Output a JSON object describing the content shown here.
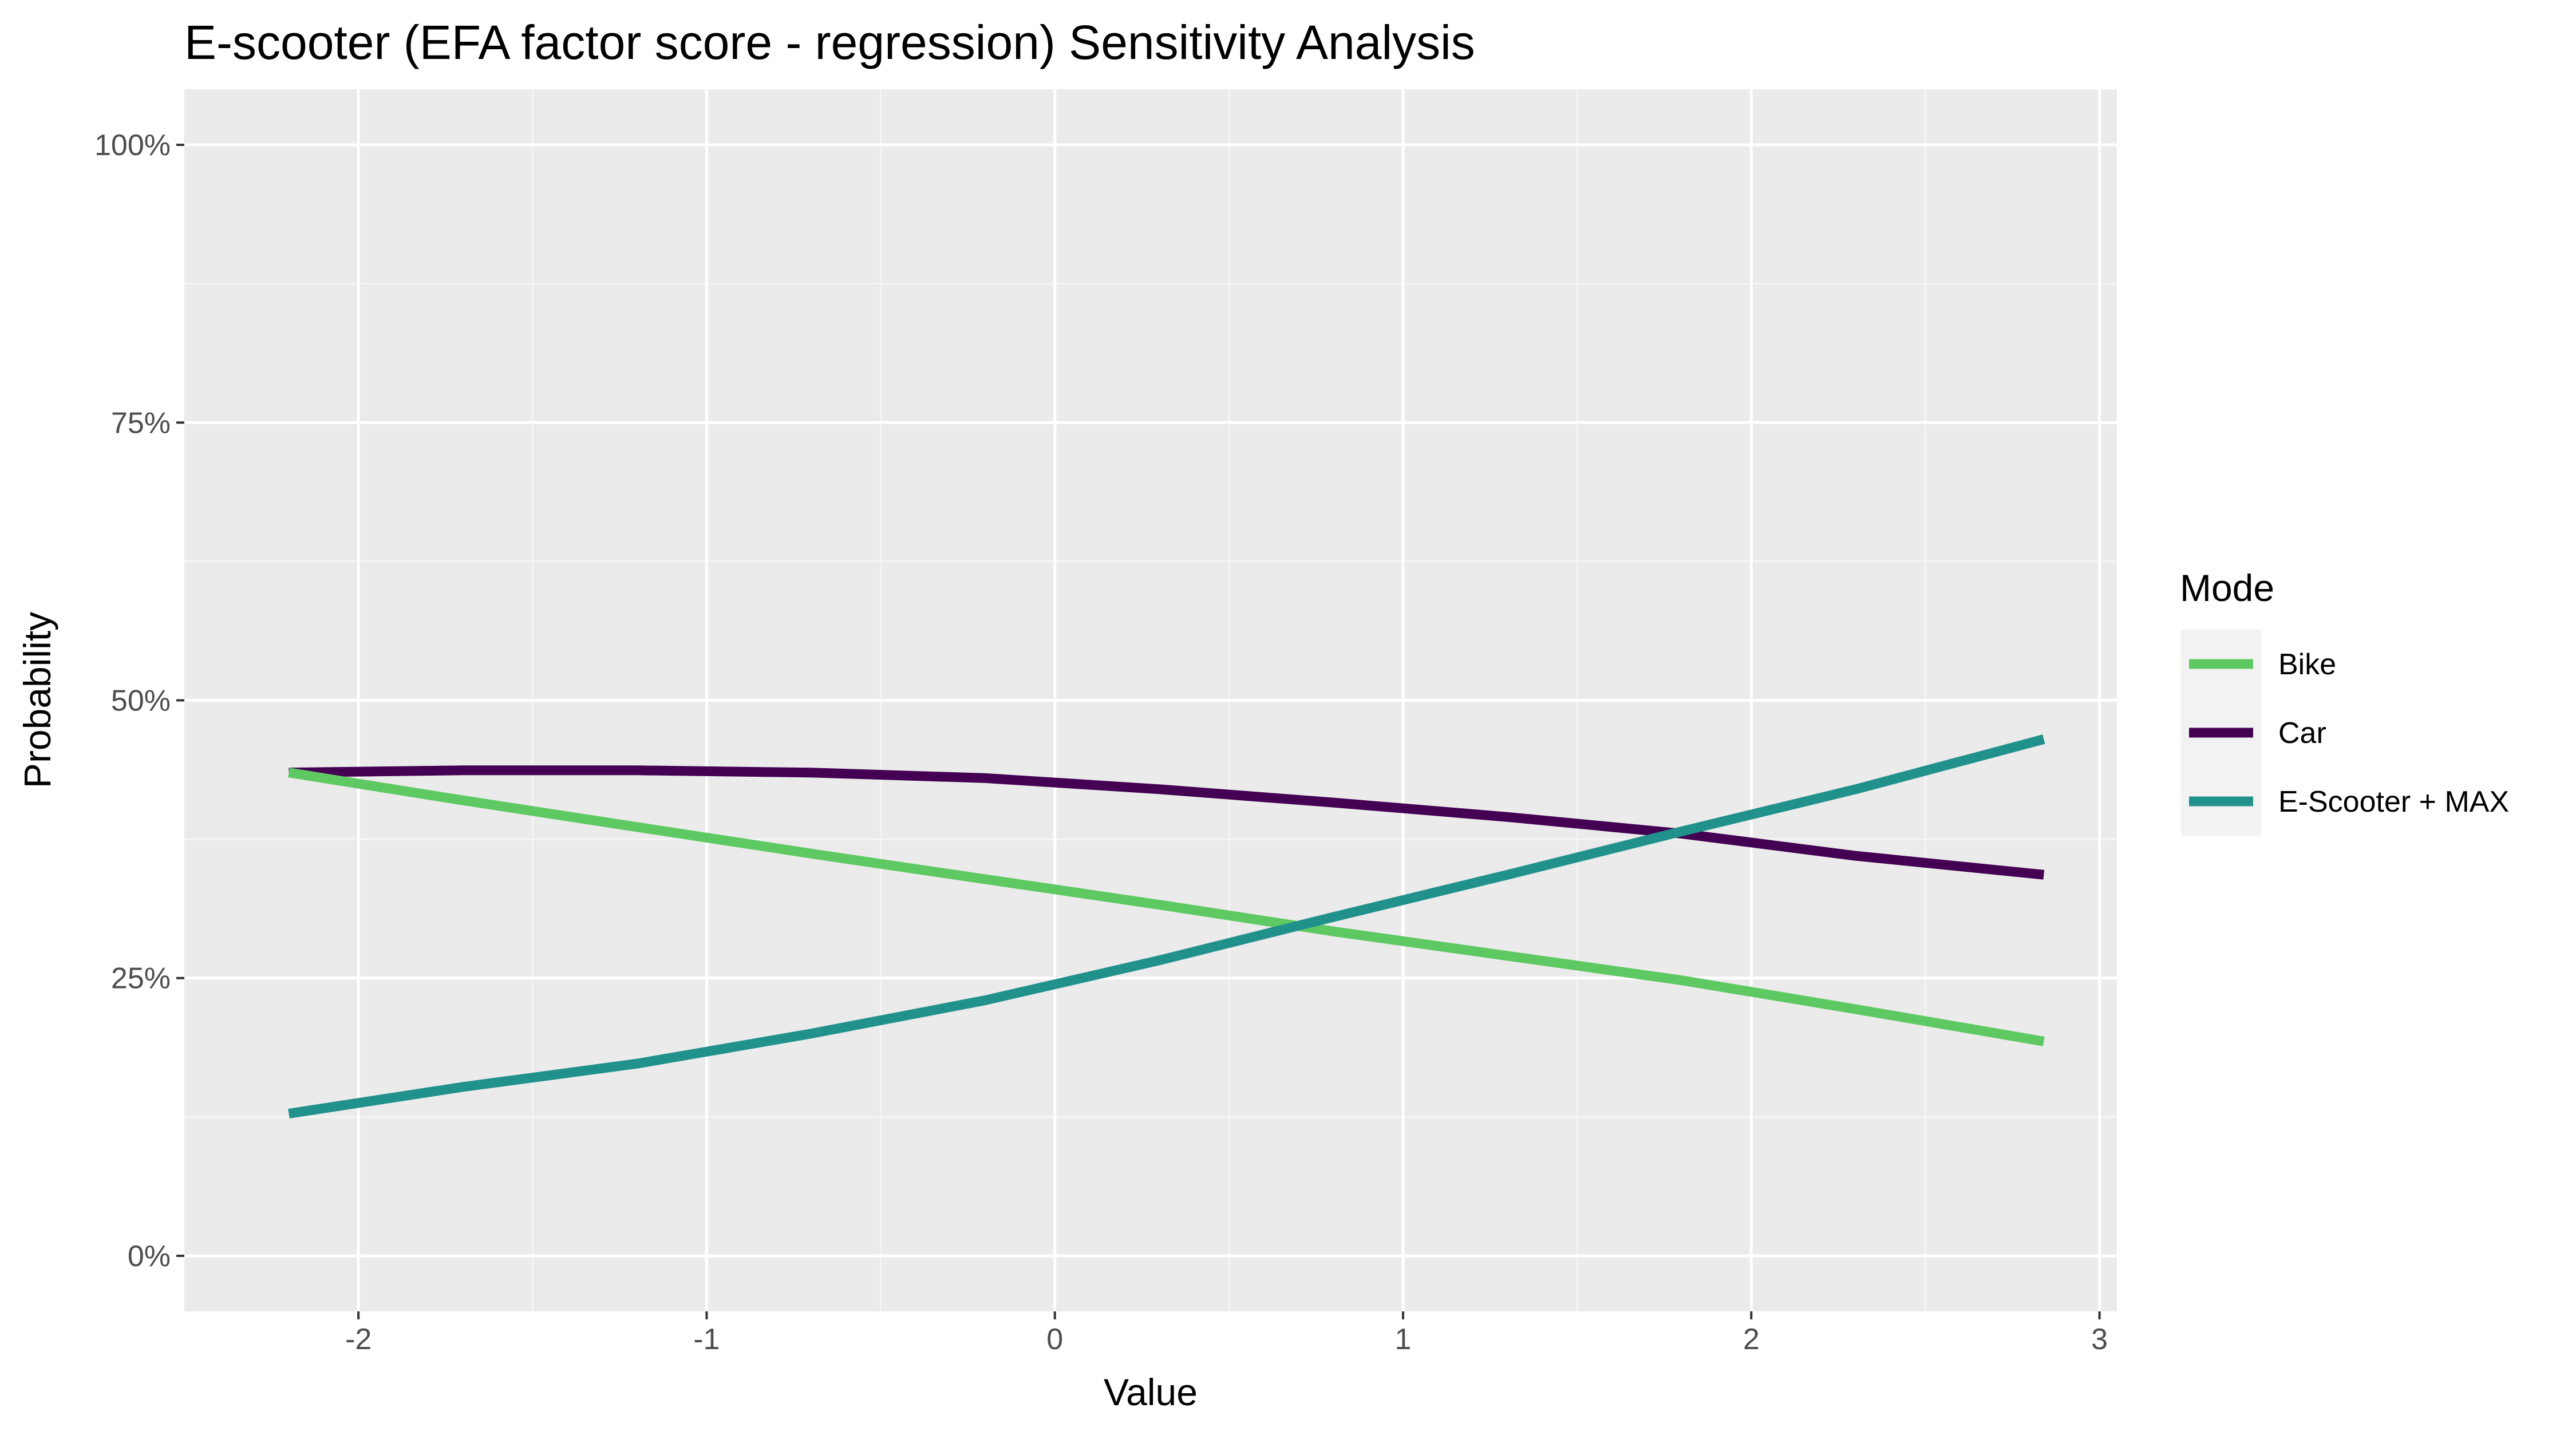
{
  "chart_data": {
    "type": "line",
    "title": "E-scooter (EFA factor score - regression) Sensitivity Analysis",
    "xlabel": "Value",
    "ylabel": "Probability",
    "xlim": [
      -2.5,
      3.05
    ],
    "ylim": [
      -0.05,
      1.05
    ],
    "x_ticks": [
      -2,
      -1,
      0,
      1,
      2,
      3
    ],
    "x_tick_labels": [
      "-2",
      "-1",
      "0",
      "1",
      "2",
      "3"
    ],
    "y_ticks": [
      0,
      0.25,
      0.5,
      0.75,
      1.0
    ],
    "y_tick_labels": [
      "0%",
      "25%",
      "50%",
      "75%",
      "100%"
    ],
    "grid": true,
    "legend": {
      "title": "Mode",
      "position": "right"
    },
    "x": [
      -2.2,
      -1.7,
      -1.2,
      -0.7,
      -0.2,
      0.3,
      0.8,
      1.3,
      1.8,
      2.3,
      2.84
    ],
    "series": [
      {
        "name": "Bike",
        "color": "#5ec962",
        "values": [
          0.435,
          0.41,
          0.386,
          0.362,
          0.339,
          0.316,
          0.292,
          0.27,
          0.248,
          0.222,
          0.193
        ]
      },
      {
        "name": "Car",
        "color": "#440154",
        "values": [
          0.435,
          0.437,
          0.437,
          0.435,
          0.43,
          0.42,
          0.408,
          0.395,
          0.38,
          0.36,
          0.343
        ]
      },
      {
        "name": "E-Scooter + MAX",
        "color": "#21918c",
        "values": [
          0.128,
          0.152,
          0.173,
          0.2,
          0.23,
          0.266,
          0.305,
          0.343,
          0.382,
          0.42,
          0.465
        ]
      }
    ]
  }
}
